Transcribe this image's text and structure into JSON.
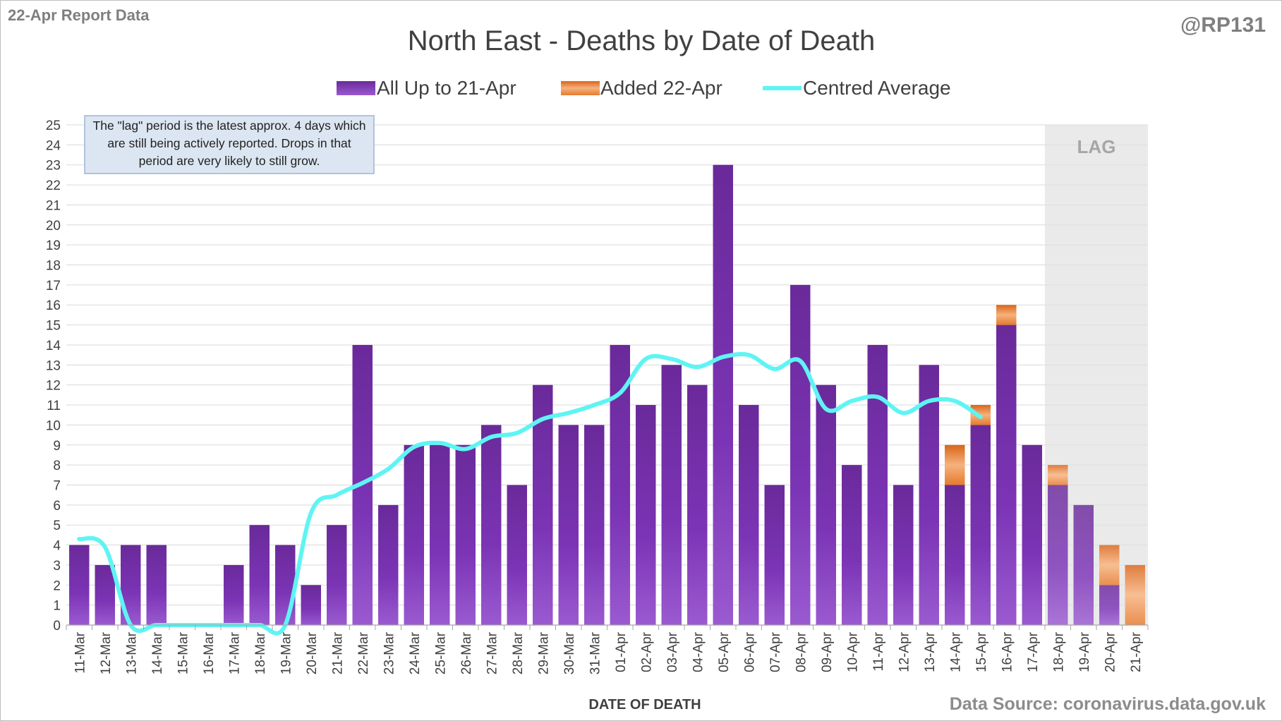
{
  "header": {
    "report_label": "22-Apr Report Data",
    "handle": "@RP131"
  },
  "footer": {
    "source": "Data Source: coronavirus.data.gov.uk"
  },
  "colors": {
    "series_main": "#7030a0",
    "series_added": "#e36c0a",
    "average_line": "#5ff4f4",
    "lag_shade": "#e6e6e6",
    "grid": "#d9d9d9"
  },
  "chart_data": {
    "type": "bar",
    "stacked": true,
    "title": "North East - Deaths by Date of Death",
    "xlabel": "DATE OF DEATH",
    "ylabel": "",
    "ylim": [
      0,
      25
    ],
    "yticks": [
      0,
      1,
      2,
      3,
      4,
      5,
      6,
      7,
      8,
      9,
      10,
      11,
      12,
      13,
      14,
      15,
      16,
      17,
      18,
      19,
      20,
      21,
      22,
      23,
      24,
      25
    ],
    "grid": true,
    "legend_position": "top-center",
    "categories": [
      "11-Mar",
      "12-Mar",
      "13-Mar",
      "14-Mar",
      "15-Mar",
      "16-Mar",
      "17-Mar",
      "18-Mar",
      "19-Mar",
      "20-Mar",
      "21-Mar",
      "22-Mar",
      "23-Mar",
      "24-Mar",
      "25-Mar",
      "26-Mar",
      "27-Mar",
      "28-Mar",
      "29-Mar",
      "30-Mar",
      "31-Mar",
      "01-Apr",
      "02-Apr",
      "03-Apr",
      "04-Apr",
      "05-Apr",
      "06-Apr",
      "07-Apr",
      "08-Apr",
      "09-Apr",
      "10-Apr",
      "11-Apr",
      "12-Apr",
      "13-Apr",
      "14-Apr",
      "15-Apr",
      "16-Apr",
      "17-Apr",
      "18-Apr",
      "19-Apr",
      "20-Apr",
      "21-Apr"
    ],
    "series": [
      {
        "name": "All Up to 21-Apr",
        "type": "bar",
        "values": [
          4,
          3,
          4,
          4,
          0,
          0,
          3,
          5,
          4,
          2,
          5,
          14,
          6,
          9,
          9,
          9,
          10,
          7,
          12,
          10,
          10,
          14,
          11,
          13,
          12,
          23,
          11,
          7,
          17,
          12,
          8,
          14,
          7,
          13,
          7,
          10,
          15,
          9,
          7,
          6,
          2,
          0
        ]
      },
      {
        "name": "Added 22-Apr",
        "type": "bar",
        "values": [
          0,
          0,
          0,
          0,
          0,
          0,
          0,
          0,
          0,
          0,
          0,
          0,
          0,
          0,
          0,
          0,
          0,
          0,
          0,
          0,
          0,
          0,
          0,
          0,
          0,
          0,
          0,
          0,
          0,
          0,
          0,
          0,
          0,
          0,
          2,
          1,
          1,
          0,
          1,
          0,
          2,
          3
        ]
      },
      {
        "name": "Centred Average",
        "type": "line",
        "values": [
          4.3,
          3.9,
          0,
          0,
          0,
          0,
          0,
          0,
          0,
          5.6,
          6.5,
          7.1,
          7.8,
          8.9,
          9.1,
          8.8,
          9.4,
          9.6,
          10.3,
          10.6,
          11.0,
          11.6,
          13.3,
          13.3,
          12.9,
          13.4,
          13.5,
          12.8,
          13.2,
          10.8,
          11.2,
          11.4,
          10.6,
          11.2,
          11.2,
          10.4,
          null,
          null,
          null,
          null,
          null,
          null
        ]
      }
    ],
    "lag_region": {
      "label": "LAG",
      "from": "18-Apr",
      "to": "21-Apr"
    },
    "annotation": "The \"lag\" period is the latest approx. 4 days which are still being actively reported.  Drops in that period are very likely to still grow."
  }
}
